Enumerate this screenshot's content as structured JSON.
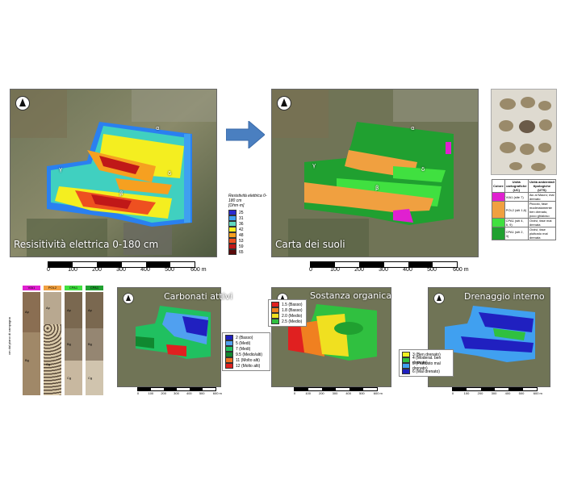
{
  "top_left_map": {
    "title": "Resisitività elettrica 0-180 cm",
    "legend": {
      "title_line1": "Resistività elettrica 0-180 cm",
      "title_line2": "[Ohm·m]",
      "items": [
        {
          "label": "25",
          "color": "#2a2ad0"
        },
        {
          "label": "31",
          "color": "#3fa0f0"
        },
        {
          "label": "36",
          "color": "#60d8c0"
        },
        {
          "label": "42",
          "color": "#f4ee20"
        },
        {
          "label": "48",
          "color": "#f6a020"
        },
        {
          "label": "53",
          "color": "#ee5020"
        },
        {
          "label": "59",
          "color": "#c01818"
        },
        {
          "label": "65",
          "color": "#5a0a0a"
        }
      ]
    },
    "scale_ticks": [
      "0",
      "100",
      "200",
      "300",
      "400",
      "500",
      "600 m"
    ],
    "zone_labels": [
      "α",
      "β",
      "γ",
      "δ"
    ]
  },
  "top_right_map": {
    "title": "Carta dei suoli",
    "scale_ticks": [
      "0",
      "100",
      "200",
      "300",
      "400",
      "500",
      "600 m"
    ],
    "zone_labels": [
      "α",
      "β",
      "γ",
      "δ"
    ]
  },
  "soil_table": {
    "headers": [
      "Colore",
      "Unità cartografiche (UC)",
      "Unità ambientali tipologiche (UTS)"
    ],
    "rows": [
      {
        "color": "#e020d0",
        "uc": "VIA1 (site 7)",
        "uts": "Aic al Macro; mal drenato"
      },
      {
        "color": "#f0a040",
        "uc": "POL2 (siti 1,6)",
        "uts": "Piccolo, fase moderatamente ben drenato, poco ghiaioso"
      },
      {
        "color": "#40e040",
        "uc": "CPA1 (siti 4, 8, 9)",
        "uts": "Orzivi, fase mal drenata"
      },
      {
        "color": "#20a030",
        "uc": "CPA1 (siti 2, 3)",
        "uts": "Orzivi, fase piuttosto mal drenata"
      }
    ]
  },
  "profiles": {
    "headers": [
      {
        "label": "VIA1",
        "color": "#e020d0"
      },
      {
        "label": "POL2",
        "color": "#f0a040"
      },
      {
        "label": "CPA1",
        "color": "#40e040"
      },
      {
        "label": "CPA1",
        "color": "#20a030"
      }
    ],
    "axis_label": "cm dal piano di campagna",
    "horizons": [
      "Ap",
      "Bg",
      "Cg"
    ]
  },
  "carbonati_map": {
    "title": "Carbonati attivi",
    "legend": [
      {
        "label": "2 (Basso)",
        "color": "#2020c0"
      },
      {
        "label": "5 (Medi)",
        "color": "#50a0f0"
      },
      {
        "label": "7 (Medi)",
        "color": "#20c060"
      },
      {
        "label": "9.5 (Medio/alti)",
        "color": "#108830"
      },
      {
        "label": "11 (Molto alti)",
        "color": "#f07020"
      },
      {
        "label": "12 (Molto alti)",
        "color": "#e02020"
      }
    ],
    "scale_ticks": [
      "0",
      "100",
      "200",
      "300",
      "400",
      "500",
      "600 m"
    ]
  },
  "sostanza_map": {
    "title": "Sostanza organica",
    "legend": [
      {
        "label": "1.5 (Basso)",
        "color": "#e02020"
      },
      {
        "label": "1.8 (Basso)",
        "color": "#f08020"
      },
      {
        "label": "2.0 (Medio)",
        "color": "#f0e020"
      },
      {
        "label": "2.5 (Medio)",
        "color": "#30c040"
      }
    ],
    "scale_ticks": [
      "0",
      "100",
      "200",
      "300",
      "400",
      "500",
      "600 m"
    ]
  },
  "drenaggio_map": {
    "title": "Drenaggio interno",
    "legend": [
      {
        "label": "3 (Ben drenato)",
        "color": "#f0f020"
      },
      {
        "label": "4 (Moderat. ben drenato)",
        "color": "#30c040"
      },
      {
        "label": "5 (Piuttosto mal drenato)",
        "color": "#40a0f0"
      },
      {
        "label": "6 (Mal drenato)",
        "color": "#2020c0"
      }
    ],
    "scale_ticks": [
      "0",
      "100",
      "200",
      "300",
      "400",
      "500",
      "600 m"
    ]
  }
}
